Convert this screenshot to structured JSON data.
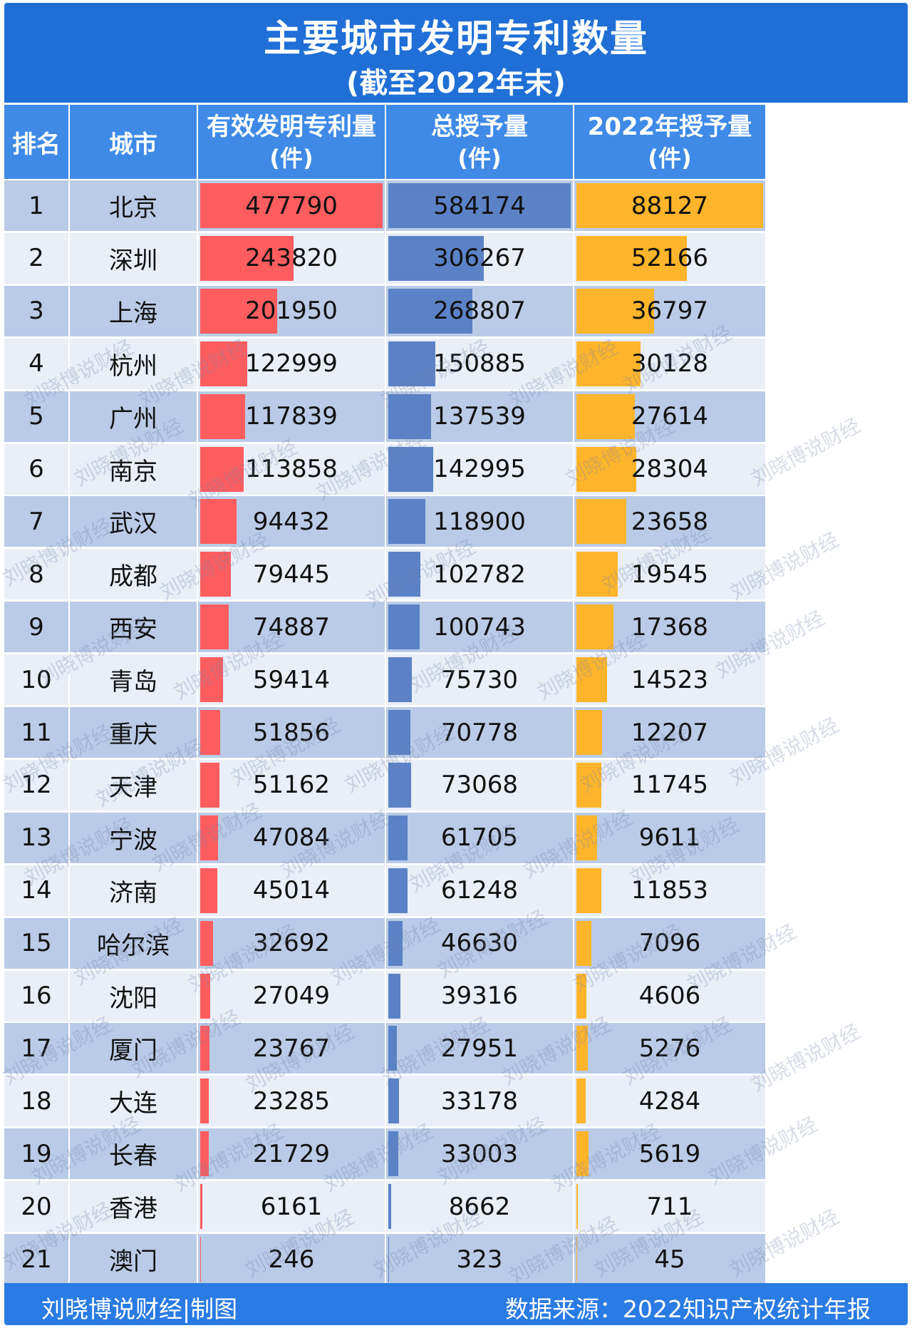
{
  "title": "主要城市发明专利数量",
  "subtitle": "(截至2022年末)",
  "watermark": "刘晓博说财经",
  "colors": {
    "header_bg": "#1f6fd6",
    "subheader_bg": "#3e8ae6",
    "row_light": "#e9eef7",
    "row_dark": "#b9cbe6",
    "bar_red": "#fd5d5f",
    "bar_blue": "#5b82c6",
    "bar_orange": "#ffb52b",
    "footer_bg": "#2a7be3"
  },
  "footer": {
    "left": "刘晓博说财经|制图",
    "right": "数据来源：2022知识产权统计年报"
  },
  "chart_data": {
    "type": "table",
    "columns": [
      {
        "l1": "排名",
        "l2": ""
      },
      {
        "l1": "城市",
        "l2": ""
      },
      {
        "l1": "有效发明专利量",
        "l2": "(件)"
      },
      {
        "l1": "总授予量",
        "l2": "(件)"
      },
      {
        "l1": "2022年授予量",
        "l2": "(件)"
      }
    ],
    "rows": [
      {
        "rank": "1",
        "city": "北京",
        "valid": 477790,
        "total": 584174,
        "y2022": 88127
      },
      {
        "rank": "2",
        "city": "深圳",
        "valid": 243820,
        "total": 306267,
        "y2022": 52166
      },
      {
        "rank": "3",
        "city": "上海",
        "valid": 201950,
        "total": 268807,
        "y2022": 36797
      },
      {
        "rank": "4",
        "city": "杭州",
        "valid": 122999,
        "total": 150885,
        "y2022": 30128
      },
      {
        "rank": "5",
        "city": "广州",
        "valid": 117839,
        "total": 137539,
        "y2022": 27614
      },
      {
        "rank": "6",
        "city": "南京",
        "valid": 113858,
        "total": 142995,
        "y2022": 28304
      },
      {
        "rank": "7",
        "city": "武汉",
        "valid": 94432,
        "total": 118900,
        "y2022": 23658
      },
      {
        "rank": "8",
        "city": "成都",
        "valid": 79445,
        "total": 102782,
        "y2022": 19545
      },
      {
        "rank": "9",
        "city": "西安",
        "valid": 74887,
        "total": 100743,
        "y2022": 17368
      },
      {
        "rank": "10",
        "city": "青岛",
        "valid": 59414,
        "total": 75730,
        "y2022": 14523
      },
      {
        "rank": "11",
        "city": "重庆",
        "valid": 51856,
        "total": 70778,
        "y2022": 12207
      },
      {
        "rank": "12",
        "city": "天津",
        "valid": 51162,
        "total": 73068,
        "y2022": 11745
      },
      {
        "rank": "13",
        "city": "宁波",
        "valid": 47084,
        "total": 61705,
        "y2022": 9611
      },
      {
        "rank": "14",
        "city": "济南",
        "valid": 45014,
        "total": 61248,
        "y2022": 11853
      },
      {
        "rank": "15",
        "city": "哈尔滨",
        "valid": 32692,
        "total": 46630,
        "y2022": 7096
      },
      {
        "rank": "16",
        "city": "沈阳",
        "valid": 27049,
        "total": 39316,
        "y2022": 4606
      },
      {
        "rank": "17",
        "city": "厦门",
        "valid": 23767,
        "total": 27951,
        "y2022": 5276
      },
      {
        "rank": "18",
        "city": "大连",
        "valid": 23285,
        "total": 33178,
        "y2022": 4284
      },
      {
        "rank": "19",
        "city": "长春",
        "valid": 21729,
        "total": 33003,
        "y2022": 5619
      },
      {
        "rank": "20",
        "city": "香港",
        "valid": 6161,
        "total": 8662,
        "y2022": 711
      },
      {
        "rank": "21",
        "city": "澳门",
        "valid": 246,
        "total": 323,
        "y2022": 45
      }
    ]
  }
}
